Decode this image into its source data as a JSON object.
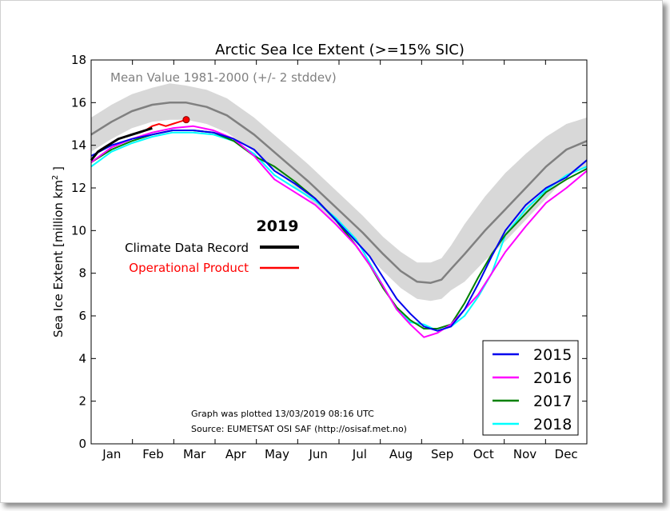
{
  "chart_data": {
    "type": "line",
    "title": "Arctic Sea Ice Extent (>=15% SIC)",
    "ylabel_prefix": "Sea Ice Extent [million km",
    "ylabel_sup": "2",
    "ylabel_suffix": " ]",
    "ylim": [
      0,
      18
    ],
    "yticks": [
      "0",
      "2",
      "4",
      "6",
      "8",
      "10",
      "12",
      "14",
      "16",
      "18"
    ],
    "xlim": [
      0,
      365
    ],
    "months": [
      "Jan",
      "Feb",
      "Mar",
      "Apr",
      "May",
      "Jun",
      "Jul",
      "Aug",
      "Sep",
      "Oct",
      "Nov",
      "Dec"
    ],
    "mean_label": "Mean Value 1981-2000 (+/- 2 stddev)",
    "mean": {
      "x": [
        0,
        15,
        30,
        45,
        58,
        70,
        85,
        100,
        120,
        140,
        160,
        180,
        200,
        215,
        228,
        240,
        250,
        258,
        265,
        275,
        290,
        305,
        320,
        335,
        350,
        365
      ],
      "values": [
        14.5,
        15.1,
        15.6,
        15.9,
        16.0,
        16.0,
        15.8,
        15.4,
        14.5,
        13.4,
        12.3,
        11.1,
        9.9,
        8.9,
        8.1,
        7.6,
        7.55,
        7.7,
        8.2,
        8.9,
        10.0,
        11.0,
        12.0,
        13.0,
        13.8,
        14.2
      ],
      "band_upper": [
        15.3,
        15.9,
        16.4,
        16.7,
        16.9,
        16.8,
        16.6,
        16.2,
        15.3,
        14.2,
        13.1,
        11.9,
        10.7,
        9.7,
        9.0,
        8.5,
        8.5,
        8.7,
        9.3,
        10.3,
        11.6,
        12.7,
        13.6,
        14.4,
        15.0,
        15.3
      ],
      "band_lower": [
        13.7,
        14.3,
        14.8,
        15.1,
        15.2,
        15.2,
        15.0,
        14.6,
        13.7,
        12.6,
        11.5,
        10.3,
        9.1,
        8.1,
        7.3,
        6.8,
        6.7,
        6.8,
        7.2,
        7.6,
        8.6,
        9.5,
        10.5,
        11.5,
        12.5,
        13.0
      ]
    },
    "legend_2019": {
      "title": "2019",
      "cdr_label": "Climate Data Record",
      "op_label": "Operational Product"
    },
    "series_2019_cdr": {
      "name": "Climate Data Record",
      "x": [
        0,
        5,
        10,
        15,
        20,
        25,
        30,
        35,
        40,
        45
      ],
      "values": [
        13.3,
        13.7,
        13.9,
        14.1,
        14.3,
        14.4,
        14.5,
        14.6,
        14.7,
        14.8
      ]
    },
    "series_2019_op": {
      "name": "Operational Product",
      "x": [
        40,
        45,
        50,
        55,
        60,
        65,
        70
      ],
      "values": [
        14.7,
        14.9,
        15.0,
        14.9,
        15.0,
        15.1,
        15.2
      ]
    },
    "series": [
      {
        "name": "2015",
        "x": [
          0,
          15,
          30,
          45,
          60,
          75,
          90,
          105,
          120,
          135,
          150,
          165,
          180,
          195,
          205,
          215,
          225,
          235,
          245,
          255,
          265,
          275,
          285,
          295,
          305,
          320,
          335,
          350,
          365
        ],
        "values": [
          13.5,
          14.0,
          14.3,
          14.5,
          14.7,
          14.7,
          14.6,
          14.3,
          13.8,
          12.8,
          12.2,
          11.5,
          10.5,
          9.5,
          8.8,
          7.8,
          6.8,
          6.1,
          5.5,
          5.3,
          5.5,
          6.3,
          7.5,
          8.8,
          10.0,
          11.2,
          12.0,
          12.5,
          13.3
        ]
      },
      {
        "name": "2016",
        "x": [
          0,
          15,
          30,
          45,
          60,
          75,
          90,
          105,
          120,
          135,
          150,
          165,
          180,
          195,
          205,
          215,
          225,
          235,
          245,
          255,
          265,
          275,
          285,
          295,
          305,
          320,
          335,
          350,
          365
        ],
        "values": [
          13.2,
          13.9,
          14.3,
          14.6,
          14.8,
          14.9,
          14.7,
          14.3,
          13.5,
          12.4,
          11.8,
          11.2,
          10.3,
          9.3,
          8.4,
          7.4,
          6.3,
          5.6,
          5.0,
          5.2,
          5.6,
          6.3,
          7.0,
          8.0,
          9.0,
          10.2,
          11.3,
          12.0,
          12.8
        ]
      },
      {
        "name": "2017",
        "x": [
          0,
          15,
          30,
          45,
          60,
          75,
          90,
          105,
          120,
          135,
          150,
          165,
          180,
          195,
          205,
          215,
          225,
          235,
          245,
          255,
          265,
          275,
          285,
          295,
          305,
          320,
          335,
          350,
          365
        ],
        "values": [
          13.2,
          13.8,
          14.2,
          14.5,
          14.7,
          14.7,
          14.6,
          14.2,
          13.5,
          13.0,
          12.3,
          11.5,
          10.5,
          9.3,
          8.4,
          7.3,
          6.4,
          5.8,
          5.4,
          5.4,
          5.6,
          6.6,
          7.8,
          8.9,
          9.8,
          10.8,
          11.8,
          12.4,
          12.9
        ]
      },
      {
        "name": "2018",
        "x": [
          0,
          15,
          30,
          45,
          60,
          75,
          90,
          105,
          120,
          135,
          150,
          165,
          180,
          195,
          205,
          215,
          225,
          235,
          245,
          255,
          265,
          275,
          285,
          295,
          305,
          320,
          335,
          350,
          365
        ],
        "values": [
          13.0,
          13.7,
          14.1,
          14.4,
          14.6,
          14.6,
          14.5,
          14.2,
          13.6,
          12.6,
          12.0,
          11.4,
          10.6,
          9.6,
          8.5,
          7.4,
          6.3,
          5.7,
          5.6,
          5.3,
          5.5,
          6.0,
          6.9,
          8.0,
          9.8,
          11.0,
          11.9,
          12.6,
          13.0
        ]
      }
    ],
    "colors": {
      "2015": "#0000ee",
      "2016": "#ff00ff",
      "2017": "#008000",
      "2018": "#00ffff",
      "cdr": "#000000",
      "op": "#ff0000",
      "mean": "#808080",
      "band": "#d8d8d8"
    },
    "notes": {
      "line1": "Graph was plotted 13/03/2019 08:16 UTC",
      "line2": "Source: EUMETSAT OSI SAF (http://osisaf.met.no)"
    },
    "legend_placement": "bottom-right"
  }
}
